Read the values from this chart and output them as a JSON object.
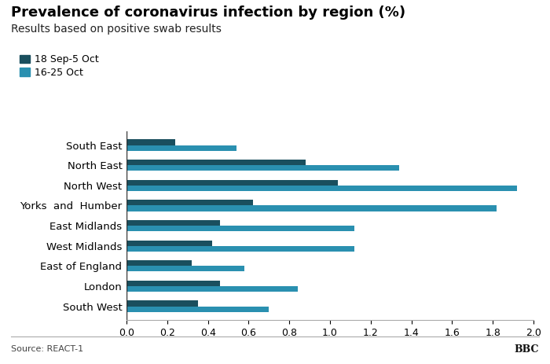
{
  "title": "Prevalence of coronavirus infection by region (%)",
  "subtitle": "Results based on positive swab results",
  "source": "Source: REACT-1",
  "bbc_label": "BBC",
  "legend_labels": [
    "18 Sep-5 Oct",
    "16-25 Oct"
  ],
  "color_dark": "#1a4f5e",
  "color_light": "#2a90b0",
  "regions": [
    "South East",
    "North East",
    "North West",
    "Yorks  and  Humber",
    "East Midlands",
    "West Midlands",
    "East of England",
    "London",
    "South West"
  ],
  "values_sep_oct": [
    0.24,
    0.88,
    1.04,
    0.62,
    0.46,
    0.42,
    0.32,
    0.46,
    0.35
  ],
  "values_oct": [
    0.54,
    1.34,
    1.92,
    1.82,
    1.12,
    1.12,
    0.58,
    0.84,
    0.7
  ],
  "xlim": [
    0,
    2.0
  ],
  "xticks": [
    0.0,
    0.2,
    0.4,
    0.6,
    0.8,
    1.0,
    1.2,
    1.4,
    1.6,
    1.8,
    2.0
  ],
  "bar_height": 0.28,
  "background_color": "#ffffff",
  "title_fontsize": 13,
  "subtitle_fontsize": 10,
  "tick_fontsize": 9,
  "label_fontsize": 9.5
}
